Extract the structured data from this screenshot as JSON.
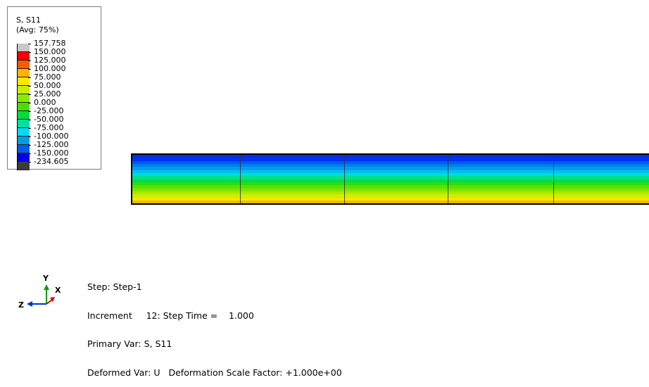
{
  "legend": {
    "title_line1": "S, S11",
    "title_line2": "(Avg: 75%)",
    "ticks": [
      "157.758",
      "150.000",
      "125.000",
      "100.000",
      "75.000",
      "50.000",
      "25.000",
      "0.000",
      "-25.000",
      "-50.000",
      "-75.000",
      "-100.000",
      "-125.000",
      "-150.000",
      "-234.605"
    ],
    "colors": [
      "#c8c8c8",
      "#ff0000",
      "#ff5a00",
      "#ffb400",
      "#ffe800",
      "#c8f000",
      "#8aea00",
      "#46e000",
      "#00dc3a",
      "#00e0a0",
      "#00dcf0",
      "#009ee6",
      "#005cf0",
      "#0000e6",
      "#3c3c3c"
    ]
  },
  "beam": {
    "bands": [
      "#0a2ce6",
      "#0032f0",
      "#005af0",
      "#007cf0",
      "#009ee6",
      "#00c0f0",
      "#00dcd8",
      "#00e08c",
      "#00dc46",
      "#2cdc14",
      "#5ae000",
      "#82e400",
      "#aaea00",
      "#d2ee00",
      "#f0ea00",
      "#ffb400",
      "#ff6e00",
      "#ff2a00",
      "#f00000",
      "#e63c1e",
      "#d24a28"
    ],
    "element_lines_pct": [
      20.8,
      41,
      61,
      81.5
    ]
  },
  "triad": {
    "axis_y": "Y",
    "axis_x": "X",
    "axis_z": "Z",
    "colors": {
      "y": "#00a000",
      "x": "#e00000",
      "z": "#0030d0"
    }
  },
  "info": {
    "line1": "Step: Step-1",
    "line2": "Increment     12: Step Time =    1.000",
    "line3": "Primary Var: S, S11",
    "line4": "Deformed Var: U   Deformation Scale Factor: +1.000e+00"
  }
}
